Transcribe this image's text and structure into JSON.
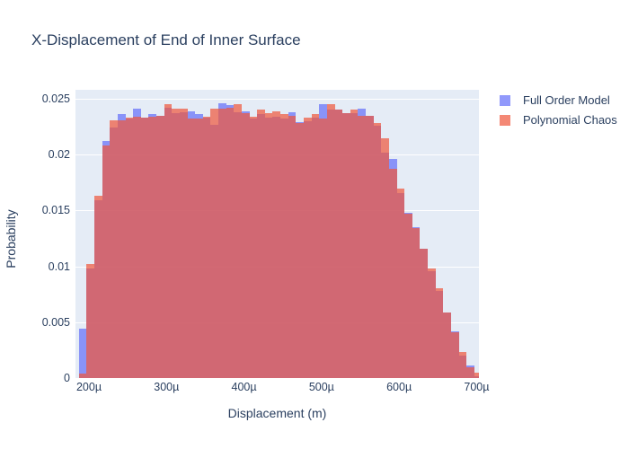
{
  "title": "X-Displacement of End of Inner Surface",
  "colors": {
    "title_text": "#2a3f5f",
    "plot_background": "#e5ecf6",
    "gridline": "#ffffff",
    "full_order_model": "#636efa",
    "polynomial_chaos": "#ef553b",
    "bar_opacity": 0.7,
    "overlap_mix": "#d06274"
  },
  "legend": {
    "items": [
      {
        "label": "Full Order Model",
        "color": "#636efa"
      },
      {
        "label": "Polynomial Chaos",
        "color": "#ef553b"
      }
    ],
    "position": "outside-top-right"
  },
  "chart_data": {
    "type": "bar",
    "subtype": "overlaid-histogram",
    "title": "X-Displacement of End of Inner Surface",
    "xlabel": "Displacement (m)",
    "ylabel": "Probability",
    "grid": "horizontal white gridlines on light blue plot background",
    "legend_position": "right-outside",
    "x_axis": {
      "range_micron": [
        182.6,
        703.0
      ],
      "ticks": [
        {
          "value_micron": 200,
          "label": "200µ"
        },
        {
          "value_micron": 300,
          "label": "300µ"
        },
        {
          "value_micron": 400,
          "label": "400µ"
        },
        {
          "value_micron": 500,
          "label": "500µ"
        },
        {
          "value_micron": 600,
          "label": "600µ"
        },
        {
          "value_micron": 700,
          "label": "700µ"
        }
      ]
    },
    "y_axis": {
      "range": [
        0,
        0.0258
      ],
      "ticks": [
        {
          "value": 0,
          "label": "0"
        },
        {
          "value": 0.005,
          "label": "0.005"
        },
        {
          "value": 0.01,
          "label": "0.01"
        },
        {
          "value": 0.015,
          "label": "0.015"
        },
        {
          "value": 0.02,
          "label": "0.02"
        },
        {
          "value": 0.025,
          "label": "0.025"
        }
      ]
    },
    "bins": {
      "start_micron": 187,
      "width_micron": 10,
      "count": 52
    },
    "series": [
      {
        "name": "Full Order Model",
        "color": "#636efa",
        "opacity": 0.7,
        "values": [
          0.0044,
          0.0098,
          0.0159,
          0.0212,
          0.0224,
          0.0236,
          0.0232,
          0.0241,
          0.0233,
          0.0236,
          0.0235,
          0.0242,
          0.0237,
          0.0238,
          0.0239,
          0.0236,
          0.0233,
          0.0227,
          0.0246,
          0.0244,
          0.0238,
          0.0239,
          0.0232,
          0.0236,
          0.0233,
          0.0234,
          0.0232,
          0.0238,
          0.0229,
          0.023,
          0.0233,
          0.0245,
          0.024,
          0.024,
          0.0237,
          0.0237,
          0.0241,
          0.0235,
          0.0226,
          0.0202,
          0.0196,
          0.0166,
          0.0148,
          0.0135,
          0.0116,
          0.0096,
          0.0078,
          0.0059,
          0.0042,
          0.002,
          0.0011,
          0.0002
        ]
      },
      {
        "name": "Polynomial Chaos",
        "color": "#ef553b",
        "opacity": 0.7,
        "values": [
          0.0004,
          0.0102,
          0.0163,
          0.0208,
          0.0231,
          0.0231,
          0.0233,
          0.0234,
          0.0233,
          0.0234,
          0.0235,
          0.0245,
          0.0241,
          0.0241,
          0.0232,
          0.0232,
          0.0234,
          0.0241,
          0.0241,
          0.0242,
          0.0245,
          0.0237,
          0.0234,
          0.024,
          0.0237,
          0.0239,
          0.0236,
          0.0235,
          0.0228,
          0.0233,
          0.0236,
          0.0232,
          0.0245,
          0.024,
          0.0237,
          0.024,
          0.0235,
          0.0235,
          0.0228,
          0.0215,
          0.0187,
          0.017,
          0.0147,
          0.0134,
          0.0116,
          0.0098,
          0.008,
          0.0059,
          0.0041,
          0.0023,
          0.001,
          0.0005
        ]
      }
    ]
  }
}
